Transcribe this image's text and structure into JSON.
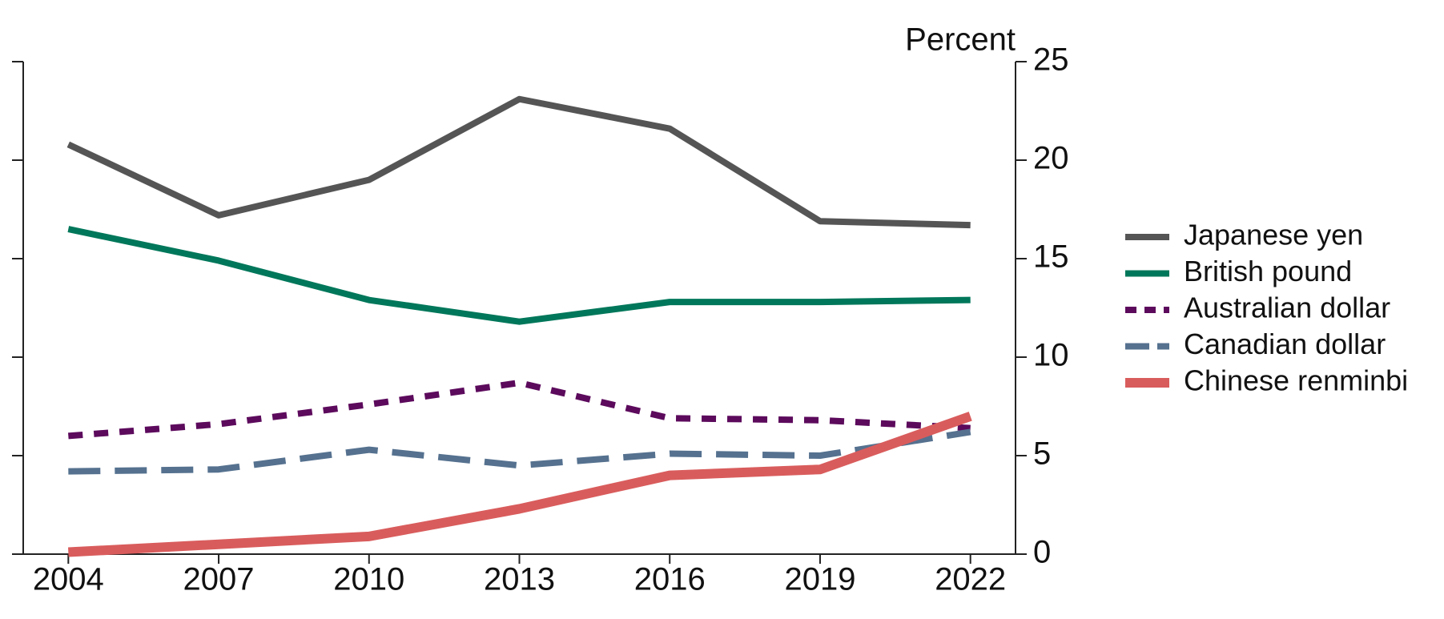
{
  "chart_data": {
    "type": "line",
    "y_label": "Percent",
    "x": [
      2004,
      2007,
      2010,
      2013,
      2016,
      2019,
      2022
    ],
    "xlim": [
      2003.1,
      2022.9
    ],
    "xticks": [
      2004,
      2007,
      2010,
      2013,
      2016,
      2019,
      2022
    ],
    "ylim": [
      0,
      25
    ],
    "yticks": [
      0,
      5,
      10,
      15,
      20,
      25
    ],
    "series": [
      {
        "name": "Japanese yen",
        "color": "#555555",
        "style": "solid",
        "values": [
          20.8,
          17.2,
          19.0,
          23.1,
          21.6,
          16.9,
          16.7
        ]
      },
      {
        "name": "British pound",
        "color": "#00775a",
        "style": "solid",
        "values": [
          16.5,
          14.9,
          12.9,
          11.8,
          12.8,
          12.8,
          12.9
        ]
      },
      {
        "name": "Australian dollar",
        "color": "#5c0a5c",
        "style": "dotted",
        "values": [
          6.0,
          6.6,
          7.6,
          8.7,
          6.9,
          6.8,
          6.4
        ]
      },
      {
        "name": "Canadian dollar",
        "color": "#55718f",
        "style": "dashed",
        "values": [
          4.2,
          4.3,
          5.3,
          4.5,
          5.1,
          5.0,
          6.2
        ]
      },
      {
        "name": "Chinese renminbi",
        "color": "#d95c5c",
        "style": "thick",
        "values": [
          0.1,
          0.5,
          0.9,
          2.3,
          4.0,
          4.3,
          7.0
        ]
      }
    ]
  }
}
